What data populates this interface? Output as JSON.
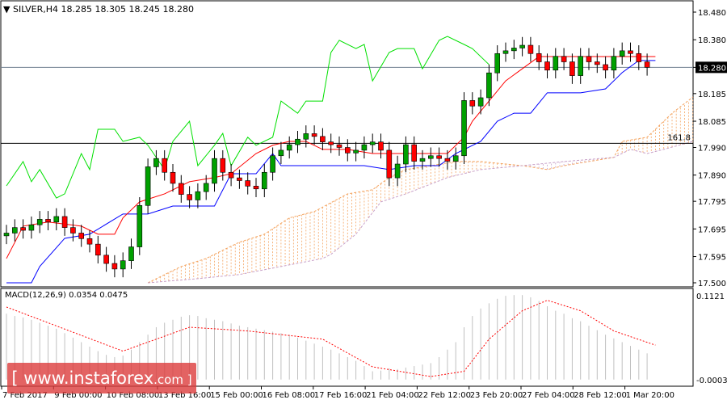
{
  "header": {
    "symbol": "SILVER,H4",
    "ohlc": "18.285 18.305 18.245 18.280"
  },
  "macd": {
    "label": "MACD(12,26,9) 0.0354 0.0475",
    "axis_max": "0.1121",
    "axis_min": "-0.0003"
  },
  "price_axis": {
    "ticks": [
      "18.480",
      "18.380",
      "18.280",
      "18.185",
      "18.085",
      "17.990",
      "17.890",
      "17.795",
      "17.695",
      "17.595",
      "17.500"
    ],
    "current": "18.280"
  },
  "fib_label": "161.8",
  "time_axis": [
    "7 Feb 2017",
    "9 Feb 00:00",
    "10 Feb 08:00",
    "13 Feb 16:00",
    "15 Feb 00:00",
    "16 Feb 08:00",
    "17 Feb 16:00",
    "21 Feb 04:00",
    "22 Feb 12:00",
    "23 Feb 20:00",
    "27 Feb 04:00",
    "28 Feb 12:00",
    "1 Mar 20:00"
  ],
  "watermark": {
    "text": "[ www.instaforex",
    "suffix": ".com ]"
  },
  "colors": {
    "bull": "#ffffff",
    "bear": "#ff0000",
    "candle_green": "#00a000",
    "chikou": "#00e000",
    "tenkan": "#ff0000",
    "kijun": "#0000ff",
    "span_a": "#f4a460",
    "span_b": "#c8a0c8",
    "signal": "#ff0000",
    "hist": "#c0c0c0"
  },
  "chart_data": {
    "type": "candlestick",
    "ylim": [
      17.5,
      18.48
    ],
    "fib_level": 18.005,
    "current_price": 18.28,
    "closes": [
      17.68,
      17.7,
      17.69,
      17.71,
      17.73,
      17.72,
      17.74,
      17.7,
      17.68,
      17.66,
      17.64,
      17.6,
      17.57,
      17.55,
      17.58,
      17.63,
      17.78,
      17.92,
      17.95,
      17.9,
      17.86,
      17.82,
      17.8,
      17.83,
      17.86,
      17.95,
      17.9,
      17.88,
      17.87,
      17.85,
      17.84,
      17.9,
      17.96,
      17.98,
      18.0,
      18.02,
      18.04,
      18.03,
      18.01,
      18.0,
      17.99,
      17.97,
      17.98,
      18.0,
      18.01,
      17.98,
      17.88,
      17.93,
      18.0,
      17.94,
      17.95,
      17.96,
      17.95,
      17.94,
      17.96,
      18.16,
      18.14,
      18.17,
      18.26,
      18.33,
      18.34,
      18.35,
      18.36,
      18.33,
      18.3,
      18.27,
      18.32,
      18.3,
      18.25,
      18.32,
      18.3,
      18.29,
      18.27,
      18.32,
      18.34,
      18.33,
      18.3,
      18.28
    ],
    "chikou": [
      [
        0,
        17.851
      ],
      [
        2,
        17.939
      ],
      [
        3,
        17.866
      ],
      [
        4,
        17.91
      ],
      [
        6,
        17.807
      ],
      [
        7,
        17.822
      ],
      [
        9,
        17.968
      ],
      [
        10,
        17.91
      ],
      [
        11,
        18.056
      ],
      [
        13,
        18.056
      ],
      [
        14,
        18.012
      ],
      [
        16,
        18.027
      ],
      [
        17,
        17.998
      ],
      [
        19,
        17.91
      ],
      [
        20,
        18.012
      ],
      [
        22,
        18.085
      ],
      [
        23,
        17.924
      ],
      [
        25,
        17.998
      ],
      [
        26,
        18.041
      ],
      [
        27,
        17.924
      ],
      [
        29,
        18.027
      ],
      [
        30,
        17.998
      ],
      [
        32,
        18.027
      ],
      [
        33,
        18.158
      ],
      [
        35,
        18.114
      ],
      [
        36,
        18.158
      ],
      [
        38,
        18.158
      ],
      [
        39,
        18.334
      ],
      [
        40,
        18.378
      ],
      [
        42,
        18.348
      ],
      [
        43,
        18.363
      ],
      [
        44,
        18.231
      ],
      [
        46,
        18.334
      ],
      [
        47,
        18.348
      ],
      [
        49,
        18.348
      ],
      [
        50,
        18.275
      ],
      [
        52,
        18.378
      ],
      [
        53,
        18.392
      ],
      [
        55,
        18.363
      ],
      [
        56,
        18.348
      ],
      [
        58,
        18.29
      ]
    ],
    "tenkan": [
      [
        0,
        17.588
      ],
      [
        2,
        17.705
      ],
      [
        5,
        17.72
      ],
      [
        9,
        17.705
      ],
      [
        11,
        17.676
      ],
      [
        13,
        17.676
      ],
      [
        14,
        17.735
      ],
      [
        16,
        17.793
      ],
      [
        19,
        17.822
      ],
      [
        22,
        17.866
      ],
      [
        25,
        17.881
      ],
      [
        27,
        17.895
      ],
      [
        30,
        17.968
      ],
      [
        32,
        17.998
      ],
      [
        34,
        18.012
      ],
      [
        36,
        18.012
      ],
      [
        38,
        17.983
      ],
      [
        41,
        17.983
      ],
      [
        44,
        17.968
      ],
      [
        47,
        17.968
      ],
      [
        50,
        17.968
      ],
      [
        53,
        17.968
      ],
      [
        55,
        18.027
      ],
      [
        56,
        18.085
      ],
      [
        58,
        18.158
      ],
      [
        60,
        18.231
      ],
      [
        62,
        18.275
      ],
      [
        64,
        18.319
      ],
      [
        67,
        18.319
      ],
      [
        70,
        18.319
      ],
      [
        73,
        18.319
      ],
      [
        76,
        18.319
      ],
      [
        78,
        18.319
      ]
    ],
    "kijun": [
      [
        0,
        17.5
      ],
      [
        3,
        17.5
      ],
      [
        4,
        17.559
      ],
      [
        7,
        17.661
      ],
      [
        10,
        17.676
      ],
      [
        14,
        17.749
      ],
      [
        17,
        17.749
      ],
      [
        20,
        17.778
      ],
      [
        23,
        17.778
      ],
      [
        25,
        17.778
      ],
      [
        27,
        17.895
      ],
      [
        30,
        17.895
      ],
      [
        32,
        17.968
      ],
      [
        33,
        17.924
      ],
      [
        38,
        17.924
      ],
      [
        43,
        17.924
      ],
      [
        46,
        17.91
      ],
      [
        49,
        17.924
      ],
      [
        52,
        17.924
      ],
      [
        54,
        17.968
      ],
      [
        57,
        18.012
      ],
      [
        59,
        18.085
      ],
      [
        61,
        18.114
      ],
      [
        63,
        18.114
      ],
      [
        65,
        18.188
      ],
      [
        69,
        18.188
      ],
      [
        72,
        18.202
      ],
      [
        74,
        18.261
      ],
      [
        76,
        18.305
      ],
      [
        78,
        18.305
      ]
    ],
    "span_a": [
      [
        17,
        17.5
      ],
      [
        21,
        17.559
      ],
      [
        24,
        17.588
      ],
      [
        26,
        17.618
      ],
      [
        28,
        17.647
      ],
      [
        31,
        17.676
      ],
      [
        34,
        17.735
      ],
      [
        37,
        17.758
      ],
      [
        41,
        17.822
      ],
      [
        44,
        17.837
      ],
      [
        46,
        17.881
      ],
      [
        48,
        17.91
      ],
      [
        51,
        17.924
      ],
      [
        54,
        17.939
      ],
      [
        57,
        17.939
      ],
      [
        62,
        17.924
      ],
      [
        65,
        17.91
      ],
      [
        67,
        17.924
      ],
      [
        70,
        17.939
      ],
      [
        73,
        17.954
      ],
      [
        74,
        18.012
      ],
      [
        77,
        18.027
      ],
      [
        78,
        18.056
      ],
      [
        80,
        18.114
      ],
      [
        83,
        18.173
      ]
    ],
    "span_b": [
      [
        17,
        17.5
      ],
      [
        23,
        17.515
      ],
      [
        28,
        17.53
      ],
      [
        33,
        17.559
      ],
      [
        38,
        17.588
      ],
      [
        39,
        17.603
      ],
      [
        42,
        17.676
      ],
      [
        45,
        17.793
      ],
      [
        48,
        17.822
      ],
      [
        53,
        17.881
      ],
      [
        57,
        17.91
      ],
      [
        62,
        17.924
      ],
      [
        67,
        17.939
      ],
      [
        73,
        17.954
      ],
      [
        75,
        17.983
      ],
      [
        77,
        17.968
      ],
      [
        79,
        17.983
      ],
      [
        83,
        18.012
      ]
    ],
    "macd_ylim": [
      -0.0003,
      0.1121
    ],
    "macd_hist": [
      0.088,
      0.085,
      0.083,
      0.08,
      0.076,
      0.072,
      0.068,
      0.062,
      0.056,
      0.05,
      0.044,
      0.038,
      0.033,
      0.03,
      0.032,
      0.04,
      0.05,
      0.06,
      0.07,
      0.076,
      0.08,
      0.084,
      0.086,
      0.085,
      0.082,
      0.08,
      0.078,
      0.075,
      0.072,
      0.07,
      0.068,
      0.066,
      0.064,
      0.062,
      0.06,
      0.056,
      0.052,
      0.048,
      0.044,
      0.04,
      0.035,
      0.03,
      0.025,
      0.018,
      0.011,
      0.012,
      0.015,
      0.014,
      0.016,
      0.018,
      0.02,
      0.022,
      0.03,
      0.04,
      0.05,
      0.07,
      0.085,
      0.095,
      0.102,
      0.108,
      0.112,
      0.113,
      0.113,
      0.11,
      0.105,
      0.098,
      0.092,
      0.088,
      0.082,
      0.078,
      0.072,
      0.066,
      0.06,
      0.055,
      0.05,
      0.045,
      0.04,
      0.035
    ],
    "macd_signal": [
      [
        0,
        0.097
      ],
      [
        14,
        0.038
      ],
      [
        22,
        0.07
      ],
      [
        29,
        0.065
      ],
      [
        38,
        0.054
      ],
      [
        44,
        0.017
      ],
      [
        51,
        0.004
      ],
      [
        55,
        0.011
      ],
      [
        58,
        0.054
      ],
      [
        62,
        0.092
      ],
      [
        65,
        0.106
      ],
      [
        69,
        0.092
      ],
      [
        73,
        0.065
      ],
      [
        78,
        0.046
      ]
    ]
  }
}
